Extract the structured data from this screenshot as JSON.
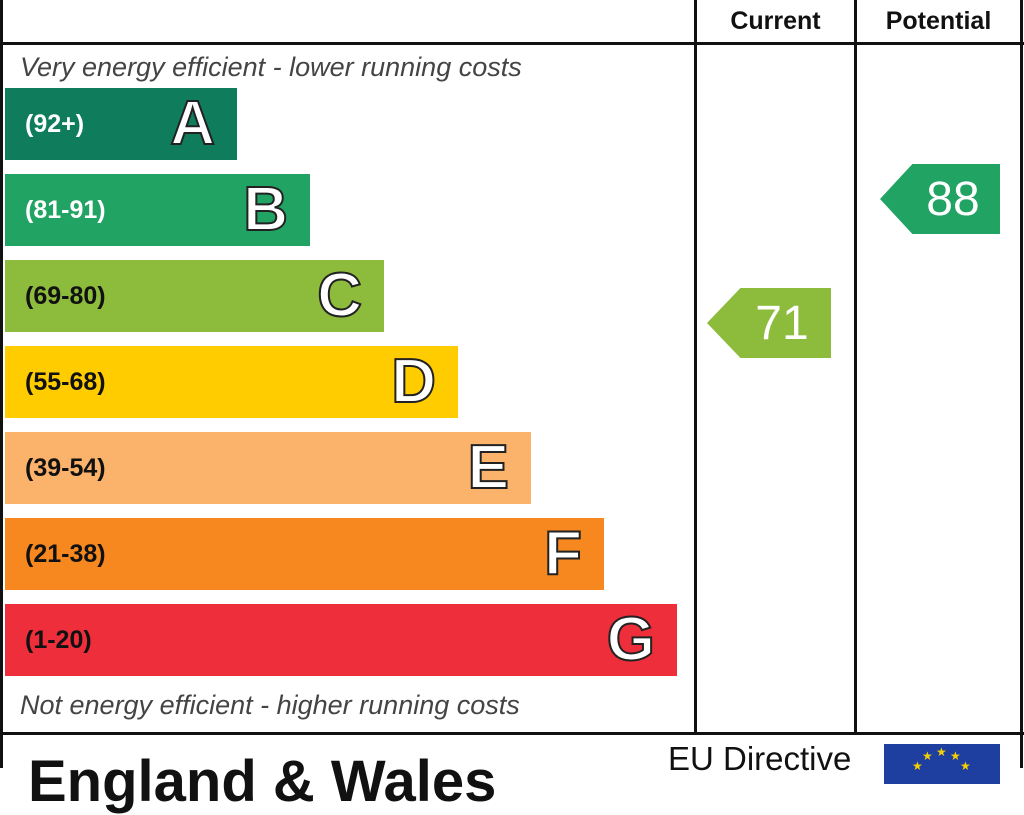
{
  "chart_data": {
    "type": "bar",
    "headers": {
      "current": "Current",
      "potential": "Potential"
    },
    "top_caption": "Very energy efficient - lower running costs",
    "bottom_caption": "Not energy efficient - higher running costs",
    "bands": [
      {
        "letter": "A",
        "range": "(92+)",
        "color": "#0f7d5b",
        "range_color": "#ffffff"
      },
      {
        "letter": "B",
        "range": "(81-91)",
        "color": "#20a363",
        "range_color": "#ffffff"
      },
      {
        "letter": "C",
        "range": "(69-80)",
        "color": "#8dbb3c",
        "range_color": "#111111"
      },
      {
        "letter": "D",
        "range": "(55-68)",
        "color": "#ffcc00",
        "range_color": "#111111"
      },
      {
        "letter": "E",
        "range": "(39-54)",
        "color": "#fbb26a",
        "range_color": "#111111"
      },
      {
        "letter": "F",
        "range": "(21-38)",
        "color": "#f7881f",
        "range_color": "#111111"
      },
      {
        "letter": "G",
        "range": "(1-20)",
        "color": "#ee2e3a",
        "range_color": "#111111"
      }
    ],
    "current": {
      "value": "71",
      "band": "C",
      "color": "#8dbb3c"
    },
    "potential": {
      "value": "88",
      "band": "B",
      "color": "#20a363"
    }
  },
  "footer": {
    "title": "England & Wales",
    "eu_text": "EU Directive",
    "flag_color": "#1f3fa0",
    "flag_star_color": "#f5d000"
  }
}
